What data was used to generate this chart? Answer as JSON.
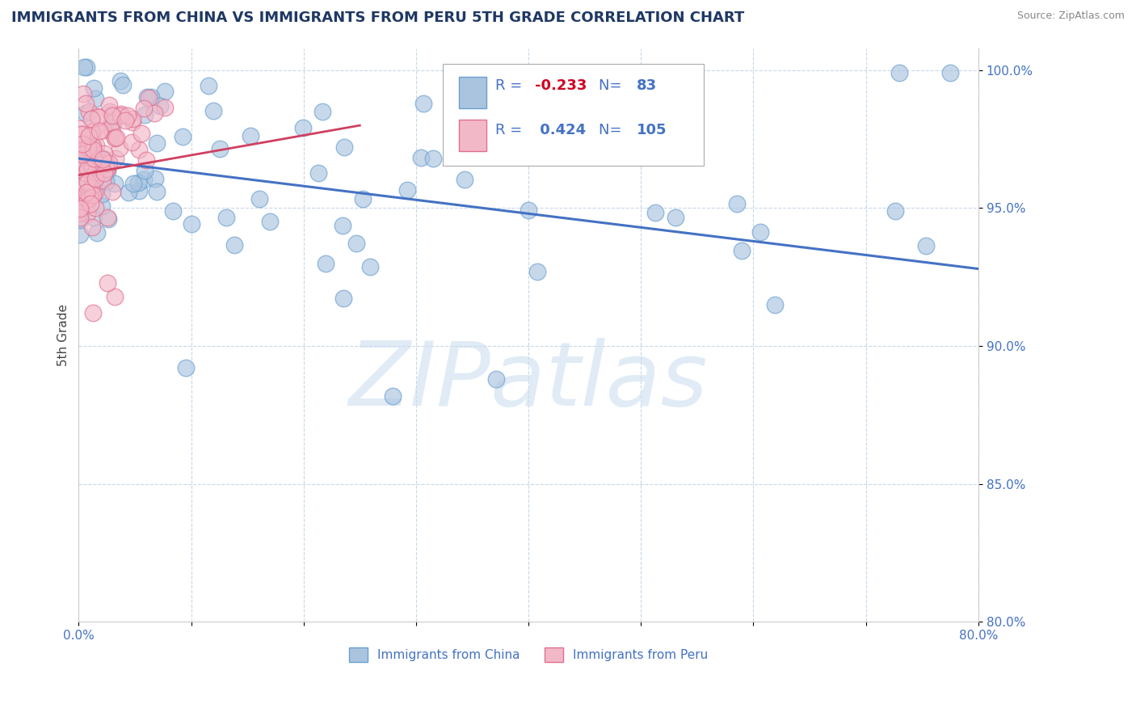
{
  "title": "IMMIGRANTS FROM CHINA VS IMMIGRANTS FROM PERU 5TH GRADE CORRELATION CHART",
  "source": "Source: ZipAtlas.com",
  "ylabel": "5th Grade",
  "watermark": "ZIPatlas",
  "x_min": 0.0,
  "x_max": 0.8,
  "y_min": 0.8,
  "y_max": 1.008,
  "x_tick_positions": [
    0.0,
    0.1,
    0.2,
    0.3,
    0.4,
    0.5,
    0.6,
    0.7,
    0.8
  ],
  "x_tick_labels": [
    "0.0%",
    "",
    "",
    "",
    "",
    "",
    "",
    "",
    "80.0%"
  ],
  "y_tick_positions": [
    0.8,
    0.85,
    0.9,
    0.95,
    1.0
  ],
  "y_tick_labels": [
    "80.0%",
    "85.0%",
    "90.0%",
    "95.0%",
    "100.0%"
  ],
  "legend_labels": [
    "Immigrants from China",
    "Immigrants from Peru"
  ],
  "R_china": -0.233,
  "N_china": 83,
  "R_peru": 0.424,
  "N_peru": 105,
  "china_color": "#aac4e0",
  "peru_color": "#f2b8c8",
  "china_edge_color": "#6aa0d0",
  "peru_edge_color": "#e07090",
  "china_line_color": "#4472c4",
  "peru_line_color": "#d04060",
  "background_color": "#ffffff",
  "grid_color": "#c8d8e8",
  "title_color": "#1f3864",
  "axis_color": "#4472c4",
  "label_color": "#444444"
}
